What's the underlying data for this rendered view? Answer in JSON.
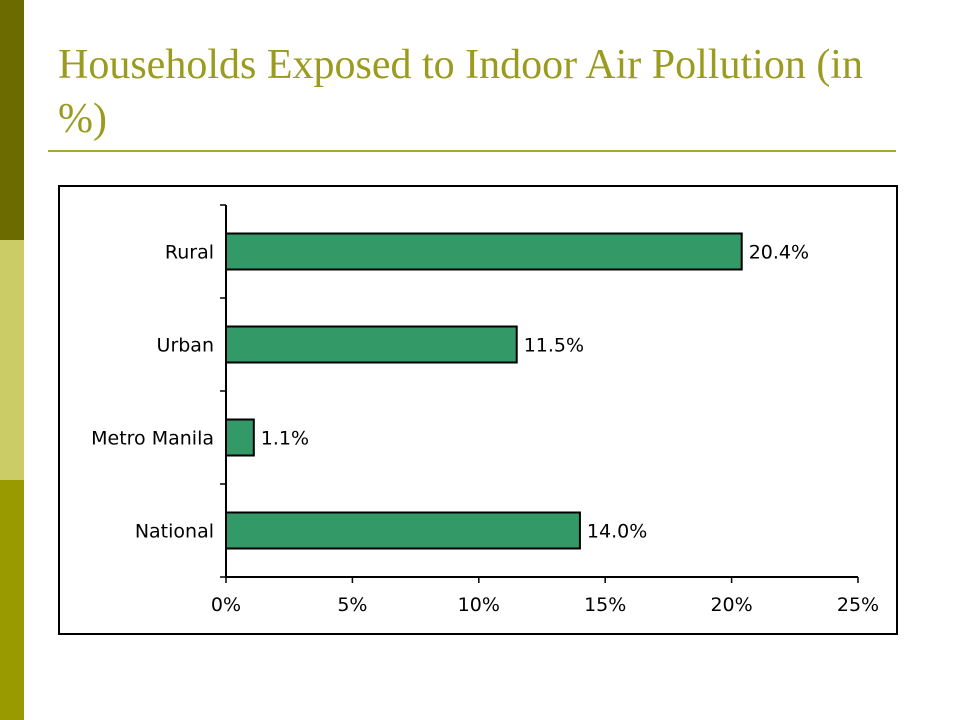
{
  "slide": {
    "title": "Households Exposed to Indoor Air Pollution (in %)",
    "colors": {
      "title": "#9b9b1f",
      "rule": "#a7a630",
      "band_top": "#6b6b00",
      "band_middle": "#cccc66",
      "band_bottom": "#999900",
      "bar_fill": "#339966",
      "frame": "#000000"
    }
  },
  "chart_data": {
    "type": "bar",
    "orientation": "horizontal",
    "categories": [
      "Rural",
      "Urban",
      "Metro Manila",
      "National"
    ],
    "values": [
      20.4,
      11.5,
      1.1,
      14.0
    ],
    "data_labels": [
      "20.4%",
      "11.5%",
      "1.1%",
      "14.0%"
    ],
    "xlim": [
      0,
      25
    ],
    "x_ticks": [
      0,
      5,
      10,
      15,
      20,
      25
    ],
    "x_tick_labels": [
      "0%",
      "5%",
      "10%",
      "15%",
      "20%",
      "25%"
    ],
    "grid": false,
    "legend": "none"
  }
}
